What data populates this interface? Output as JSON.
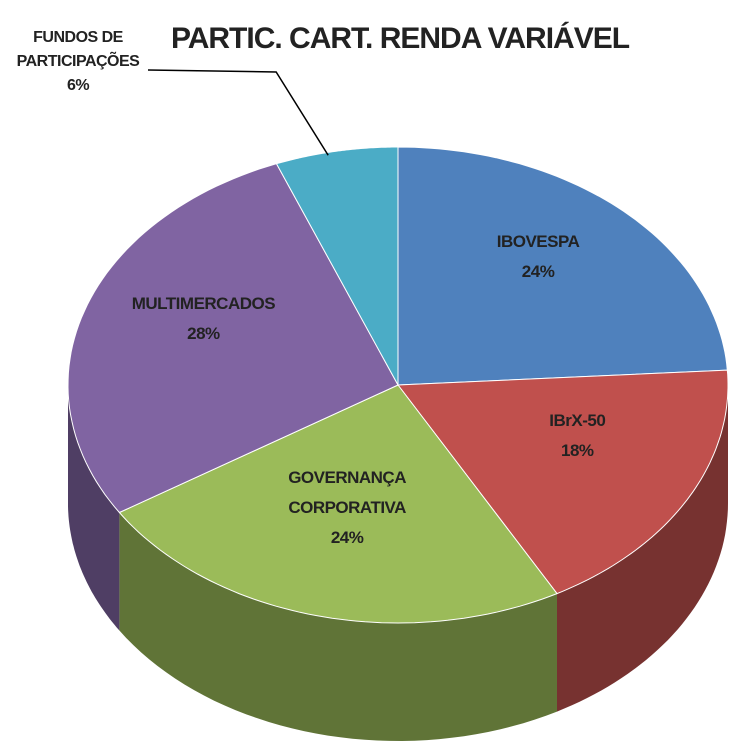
{
  "chart_data": {
    "type": "pie",
    "title": "PARTIC. CART. RENDA VARIÁVEL",
    "categories": [
      "IBOVESPA",
      "IBrX-50",
      "GOVERNANÇA CORPORATIVA",
      "MULTIMERCADOS",
      "FUNDOS DE PARTICIPAÇÕES"
    ],
    "values": [
      24,
      18,
      24,
      28,
      6
    ],
    "value_labels": [
      "24%",
      "18%",
      "24%",
      "28%",
      "6%"
    ],
    "colors": [
      "#4f81bd",
      "#c0504d",
      "#9bbb59",
      "#8064a2",
      "#4bacc6"
    ]
  }
}
